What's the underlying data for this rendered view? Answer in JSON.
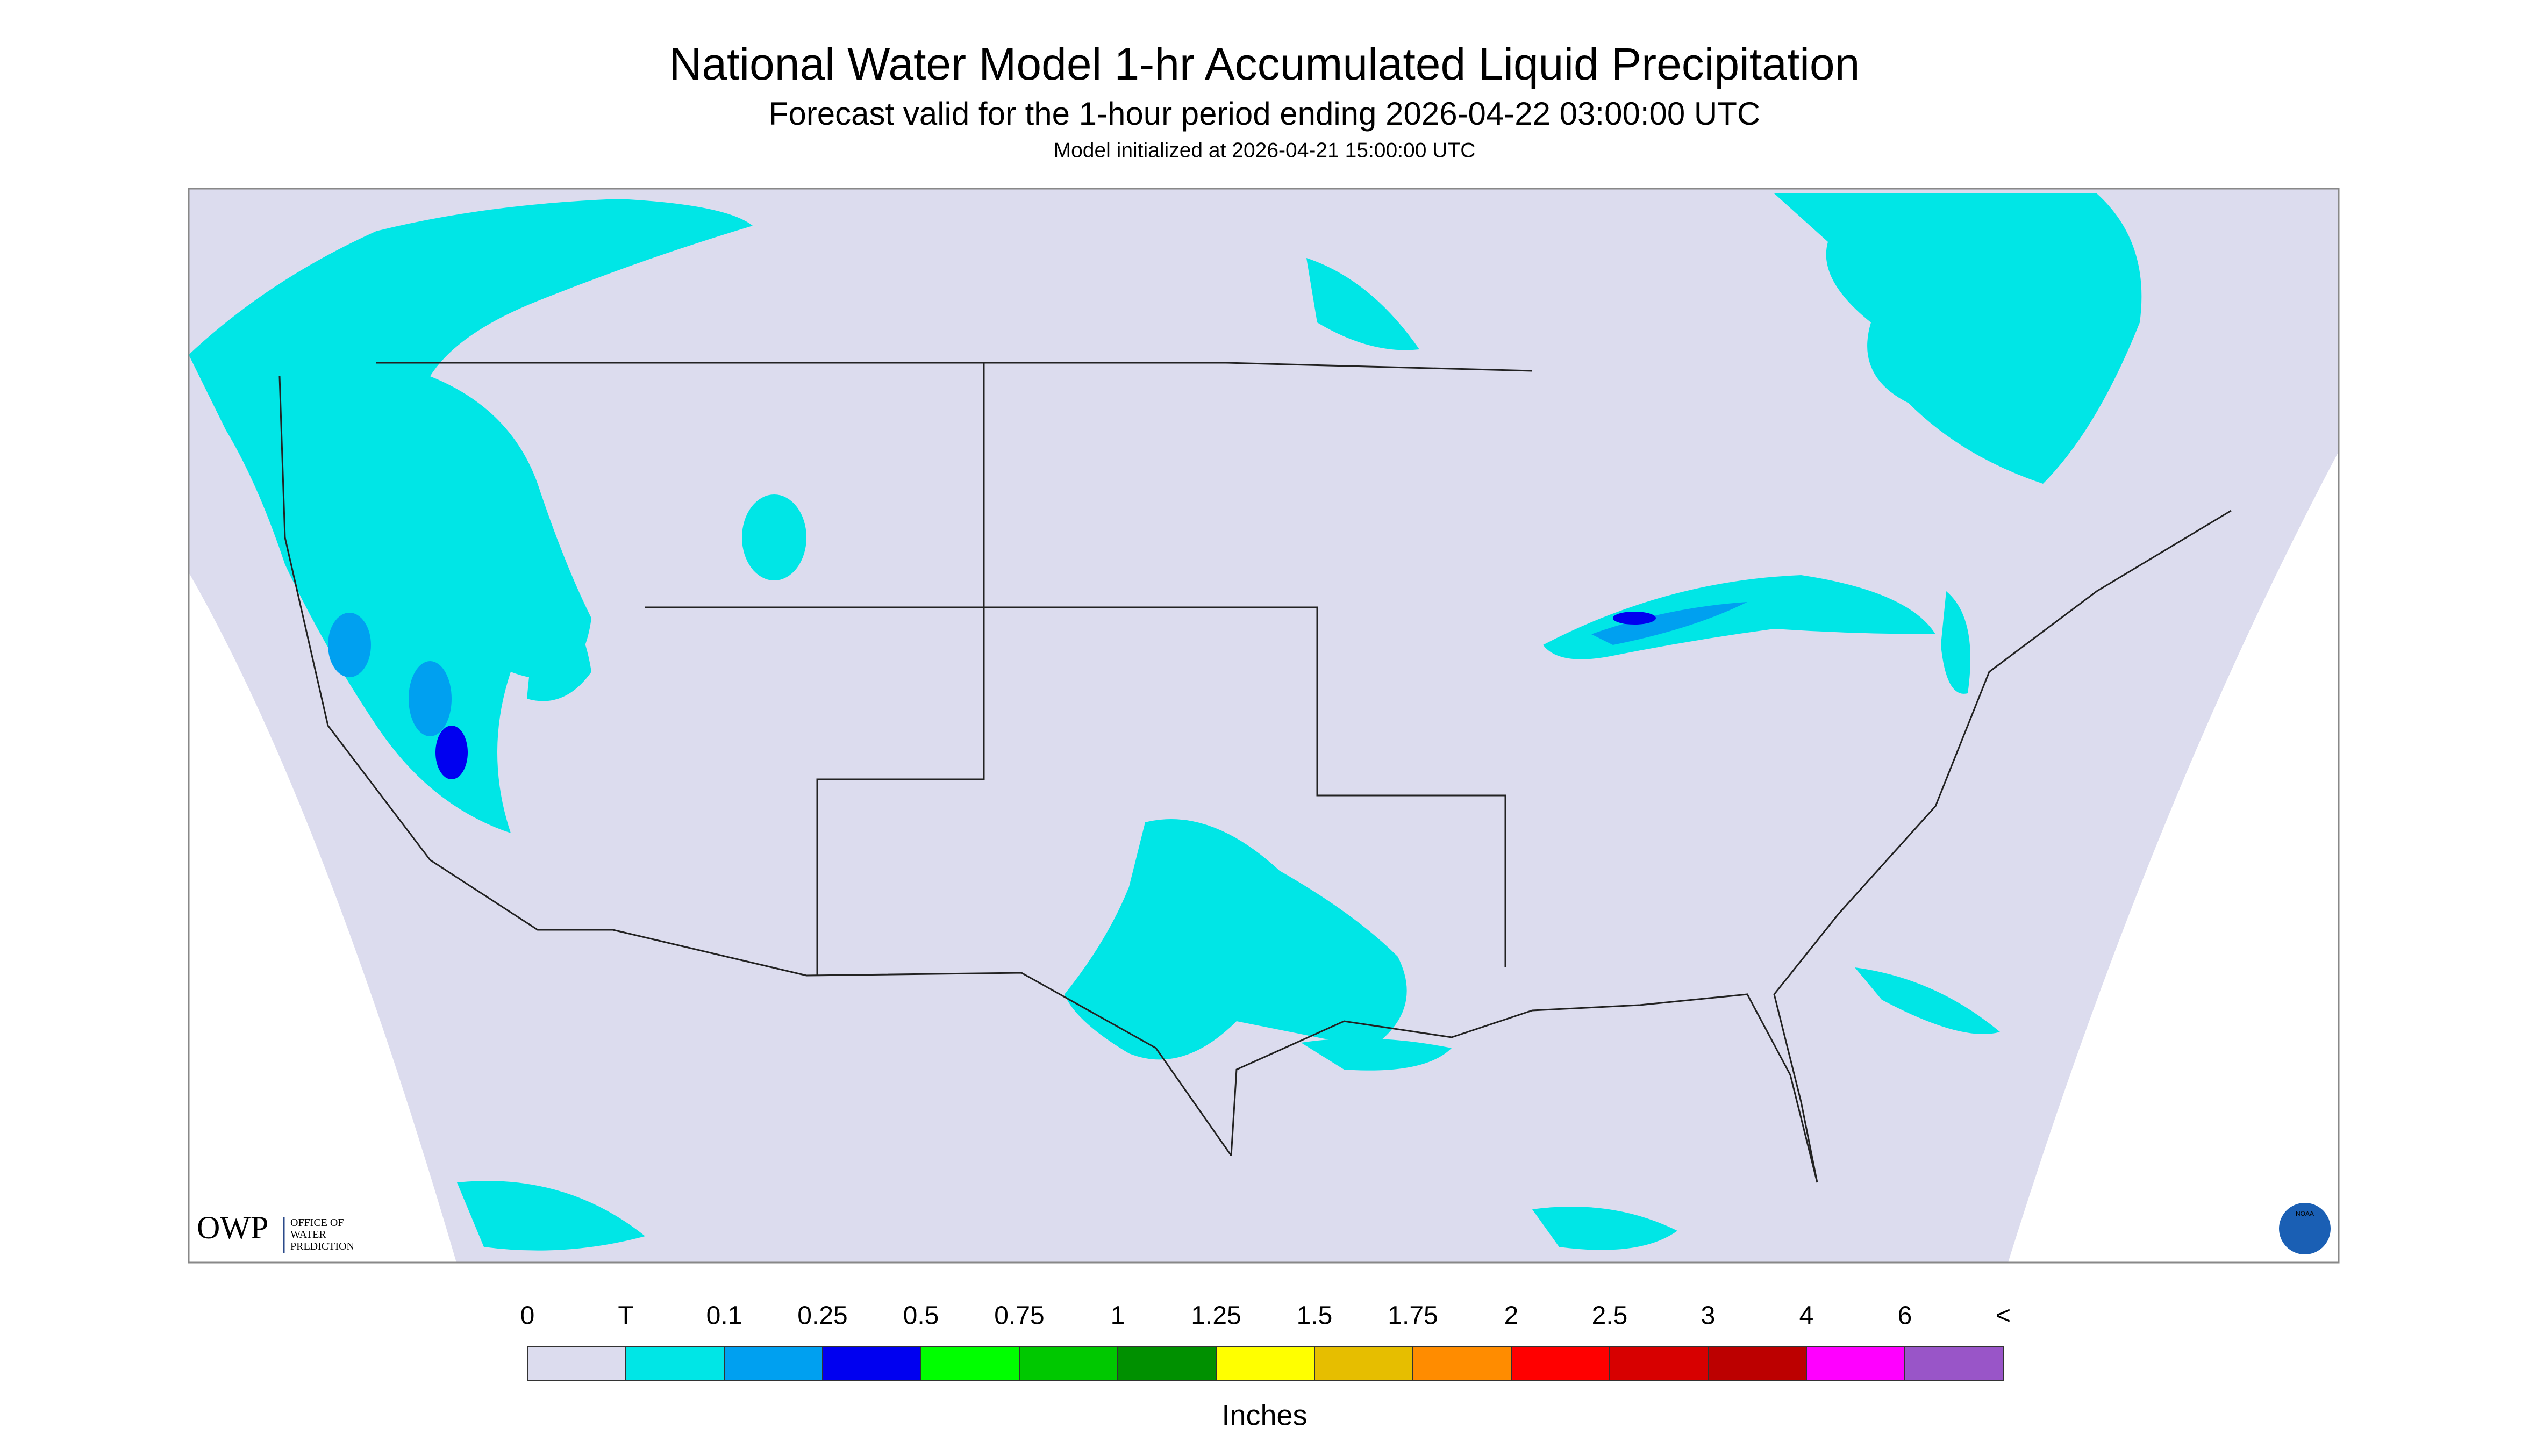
{
  "header": {
    "title": "National Water Model 1-hr Accumulated Liquid Precipitation",
    "subtitle": "Forecast valid for the 1-hour period ending 2026-04-22 03:00:00 UTC",
    "init": "Model initialized at 2026-04-21 15:00:00 UTC"
  },
  "logos": {
    "owp": "OWP",
    "owp_lines": [
      "OFFICE OF",
      "WATER",
      "PREDICTION"
    ],
    "noaa": "NOAA"
  },
  "legend": {
    "labels": [
      "0",
      "T",
      "0.1",
      "0.25",
      "0.5",
      "0.75",
      "1",
      "1.25",
      "1.5",
      "1.75",
      "2",
      "2.5",
      "3",
      "4",
      "6",
      "<"
    ],
    "colors": [
      "#dcdcee",
      "#00e6e6",
      "#00a0f0",
      "#0000f0",
      "#00ff00",
      "#00c800",
      "#009000",
      "#ffff00",
      "#e6be00",
      "#ff8c00",
      "#ff0000",
      "#d70000",
      "#bc0000",
      "#ff00ff",
      "#9955c8"
    ],
    "unit": "Inches"
  }
}
